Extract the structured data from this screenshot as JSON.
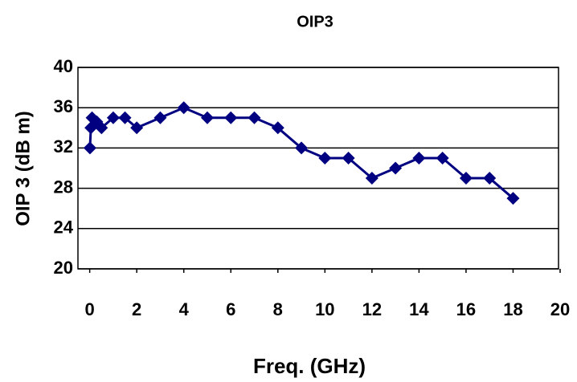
{
  "chart_data": {
    "type": "line",
    "title": "OIP3",
    "x_label": "Freq. (GHz)",
    "y_label": "OIP 3 (dB m)",
    "series": [
      {
        "name": "OIP3",
        "color": "#000080",
        "x": [
          0.01,
          0.05,
          0.1,
          0.3,
          0.5,
          1,
          1.5,
          2,
          3,
          4,
          5,
          6,
          7,
          8,
          9,
          10,
          11,
          12,
          13,
          14,
          15,
          16,
          17,
          18
        ],
        "values": [
          32,
          34,
          35,
          34.6,
          34,
          35,
          35,
          34,
          35,
          36,
          35,
          35,
          35,
          34,
          32,
          31,
          31,
          29,
          30,
          31,
          31,
          29,
          29,
          27
        ]
      }
    ],
    "xlim": [
      -0.5,
      20
    ],
    "xticks": [
      0,
      2,
      4,
      6,
      8,
      10,
      12,
      14,
      16,
      18,
      20
    ],
    "ylim": [
      20,
      40
    ],
    "yticks": [
      20,
      24,
      28,
      32,
      36,
      40
    ],
    "grid": true
  }
}
